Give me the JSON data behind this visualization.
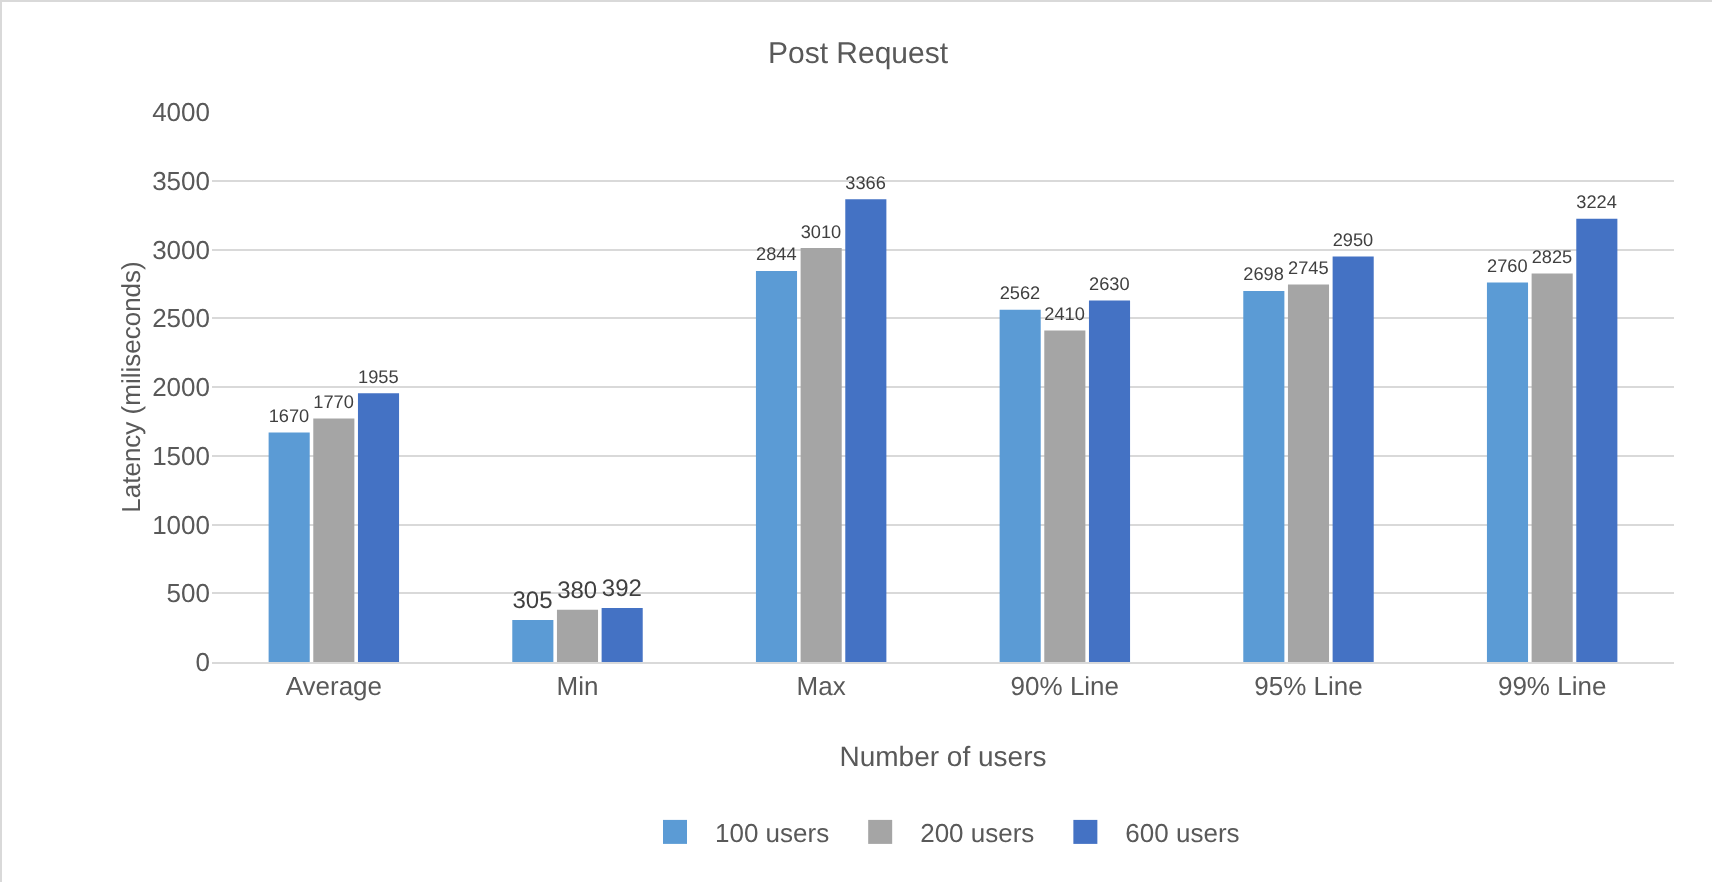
{
  "chart_data": {
    "type": "bar",
    "title": "Post Request",
    "xlabel": "Number of users",
    "ylabel": "Latency (miliseconds)",
    "categories": [
      "Average",
      "Min",
      "Max",
      "90% Line",
      "95% Line",
      "99% Line"
    ],
    "series": [
      {
        "name": "100 users",
        "color": "#5b9bd5",
        "values": [
          1670,
          305,
          2844,
          2562,
          2698,
          2760
        ]
      },
      {
        "name": "200 users",
        "color": "#a5a5a5",
        "values": [
          1770,
          380,
          3010,
          2410,
          2745,
          2825
        ]
      },
      {
        "name": "600 users",
        "color": "#4472c4",
        "values": [
          1955,
          392,
          3366,
          2630,
          2950,
          3224
        ]
      }
    ],
    "ylim": [
      0,
      4000
    ],
    "yticks": [
      0,
      500,
      1000,
      1500,
      2000,
      2500,
      3000,
      3500,
      4000
    ],
    "grid": "y",
    "legend": "bottom",
    "data_labels": true
  }
}
